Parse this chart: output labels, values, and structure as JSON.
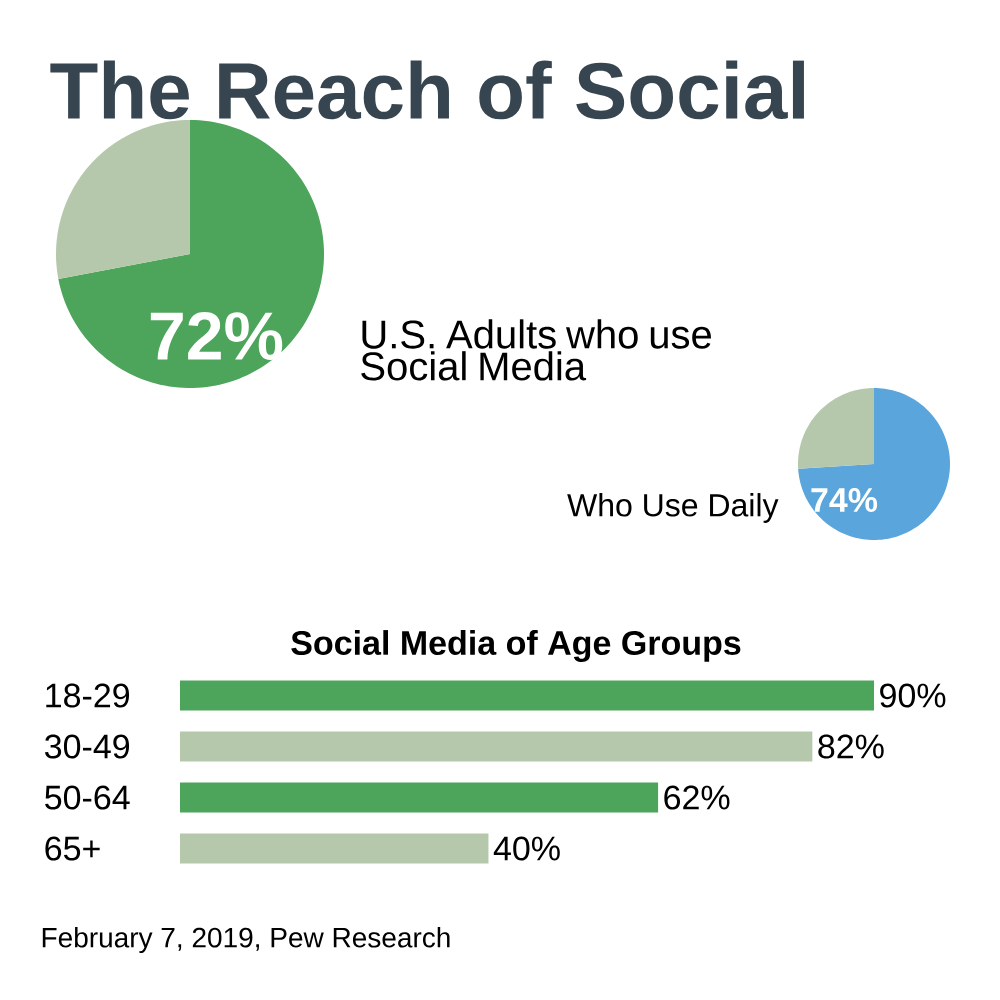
{
  "chart_data": [
    {
      "type": "pie",
      "title": "The Reach of Social",
      "subtitle": "U.S. Adults who use Social Media",
      "categories": [
        null,
        null
      ],
      "values": [
        72,
        28
      ],
      "colors": [
        "#4ca55a",
        "#b5c8ab"
      ],
      "value_labels": [
        "72%",
        null
      ]
    },
    {
      "type": "pie",
      "subtitle": "Who Use Daily",
      "categories": [
        null,
        null
      ],
      "values": [
        74,
        26
      ],
      "colors": [
        "#5aa5dc",
        "#b5c8ab"
      ],
      "value_labels": [
        "74%",
        null
      ]
    },
    {
      "type": "bar",
      "orientation": "horizontal",
      "title": "Social Media of Age Groups",
      "categories": [
        "18-29",
        "30-49",
        "50-64",
        "65+"
      ],
      "values": [
        90,
        82,
        62,
        40
      ],
      "colors": [
        "#4ca55a",
        "#b5c8ab",
        "#4ca55a",
        "#b5c8ab"
      ],
      "value_labels": [
        "90%",
        "82%",
        "62%",
        "40%"
      ],
      "annotations": [
        "February 7, 2019, Pew Research"
      ]
    }
  ]
}
